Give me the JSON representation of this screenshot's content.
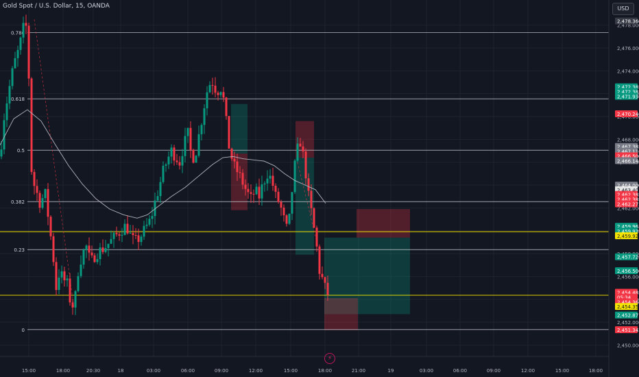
{
  "header": {
    "title": "Gold Spot / U.S. Dollar, 15, OANDA",
    "currency_button": "USD",
    "logo_icon": "bolt-icon"
  },
  "colors": {
    "background": "#131722",
    "bull": "#089981",
    "bear": "#f23645",
    "grid": "#1f232e",
    "fib_line": "#d1d4dc",
    "yellow": "#f5e400",
    "ma": "#b2b5be"
  },
  "chart_data": {
    "type": "candlestick",
    "symbol": "XAUUSD",
    "timeframe": "15",
    "ylim": [
      2449.0,
      2479.2
    ],
    "y_ticks": [
      "2,450.000",
      "2,452.000",
      "2,454.000",
      "2,456.000",
      "2,458.000",
      "2,460.000",
      "2,462.000",
      "2,464.000",
      "2,466.000",
      "2,468.000",
      "2,470.000",
      "2,472.000",
      "2,474.000",
      "2,476.000",
      "2,478.000"
    ],
    "x_ticks": [
      "15:00",
      "18:00",
      "20:30",
      "18",
      "03:00",
      "06:00",
      "09:00",
      "12:00",
      "15:00",
      "18:00",
      "21:00",
      "19",
      "03:00",
      "06:00",
      "09:00",
      "12:00",
      "15:00",
      "18:00"
    ],
    "fib_levels": [
      {
        "label": "0.786",
        "price": 2477.35
      },
      {
        "label": "0.618",
        "price": 2471.55
      },
      {
        "label": "0.5",
        "price": 2467.05
      },
      {
        "label": "0.382",
        "price": 2462.55
      },
      {
        "label": "0.23",
        "price": 2458.35
      },
      {
        "label": "0",
        "price": 2451.35
      }
    ],
    "horizontal_lines": [
      2459.92,
      2454.36
    ],
    "price_labels": [
      {
        "text": "2,478.360",
        "price": 2478.36,
        "color": "#363a45"
      },
      {
        "text": "2,472.385",
        "price": 2472.6,
        "color": "#089981"
      },
      {
        "text": "2,472.385",
        "price": 2472.19,
        "color": "#089981"
      },
      {
        "text": "2,471.930",
        "price": 2471.77,
        "color": "#089981"
      },
      {
        "text": "2,470.240",
        "price": 2470.24,
        "color": "#f23645"
      },
      {
        "text": "2,467.385",
        "price": 2467.38,
        "color": "#787b86"
      },
      {
        "text": "2,467.110",
        "price": 2466.97,
        "color": "#787b86"
      },
      {
        "text": "2,466.500",
        "price": 2466.56,
        "color": "#f23645"
      },
      {
        "text": "2,466.140",
        "price": 2466.14,
        "color": "#787b86"
      },
      {
        "text": "2,464.000",
        "price": 2464.0,
        "color": "#787b86"
      },
      {
        "text": "2,463.408",
        "price": 2463.59,
        "color": "#e6e6e6"
      },
      {
        "text": "2,462.385",
        "price": 2463.18,
        "color": "#f23645"
      },
      {
        "text": "2,462.385",
        "price": 2462.77,
        "color": "#f23645"
      },
      {
        "text": "2,462.273",
        "price": 2462.36,
        "color": "#f23645"
      },
      {
        "text": "2,459.962",
        "price": 2460.39,
        "color": "#089981"
      },
      {
        "text": "2,459.923",
        "price": 2459.98,
        "color": "#089981"
      },
      {
        "text": "2,459.921",
        "price": 2459.57,
        "color": "#f5e400"
      },
      {
        "text": "2,457.720",
        "price": 2457.72,
        "color": "#089981"
      },
      {
        "text": "2,456.500",
        "price": 2456.5,
        "color": "#089981"
      },
      {
        "text": "2,454.485",
        "price": 2454.62,
        "color": "#f23645"
      },
      {
        "text": "05:34",
        "price": 2454.2,
        "color": "#f23645"
      },
      {
        "text": "2,454.360",
        "price": 2453.78,
        "color": "#f23645"
      },
      {
        "text": "2,454.358",
        "price": 2453.37,
        "color": "#f5e400"
      },
      {
        "text": "2,452.871",
        "price": 2452.62,
        "color": "#089981"
      },
      {
        "text": "2,451.343",
        "price": 2451.34,
        "color": "#f23645"
      }
    ],
    "position_boxes": [
      {
        "kind": "profit",
        "x0": 337,
        "x1": 361,
        "y_top": 2471.1,
        "y_bottom": 2466.76
      },
      {
        "kind": "loss",
        "x0": 337,
        "x1": 361,
        "y_top": 2466.76,
        "y_bottom": 2461.8
      },
      {
        "kind": "loss",
        "x0": 431,
        "x1": 458,
        "y_top": 2469.6,
        "y_bottom": 2466.4
      },
      {
        "kind": "profit",
        "x0": 431,
        "x1": 458,
        "y_top": 2466.4,
        "y_bottom": 2457.9
      },
      {
        "kind": "profit",
        "x0": 473,
        "x1": 598,
        "y_top": 2459.4,
        "y_bottom": 2452.7
      },
      {
        "kind": "loss",
        "x0": 520,
        "x1": 598,
        "y_top": 2461.9,
        "y_bottom": 2459.4
      },
      {
        "kind": "loss",
        "x0": 473,
        "x1": 522,
        "y_top": 2454.1,
        "y_bottom": 2451.3
      }
    ],
    "price_path": [
      [
        0,
        2466.5
      ],
      [
        6,
        2470.0
      ],
      [
        12,
        2472.0
      ],
      [
        20,
        2474.5
      ],
      [
        28,
        2476.0
      ],
      [
        36,
        2478.3
      ],
      [
        41,
        2477.2
      ],
      [
        44,
        2466.0
      ],
      [
        50,
        2464.0
      ],
      [
        58,
        2462.5
      ],
      [
        66,
        2463.2
      ],
      [
        72,
        2460.5
      ],
      [
        78,
        2457.5
      ],
      [
        82,
        2455.0
      ],
      [
        88,
        2456.8
      ],
      [
        92,
        2455.3
      ],
      [
        96,
        2456.0
      ],
      [
        102,
        2454.0
      ],
      [
        108,
        2453.2
      ],
      [
        114,
        2456.5
      ],
      [
        120,
        2458.0
      ],
      [
        126,
        2458.6
      ],
      [
        132,
        2457.2
      ],
      [
        138,
        2457.8
      ],
      [
        144,
        2458.2
      ],
      [
        152,
        2458.5
      ],
      [
        160,
        2459.0
      ],
      [
        168,
        2459.5
      ],
      [
        176,
        2460.0
      ],
      [
        184,
        2460.5
      ],
      [
        190,
        2459.6
      ],
      [
        196,
        2459.0
      ],
      [
        204,
        2459.4
      ],
      [
        212,
        2460.2
      ],
      [
        220,
        2461.0
      ],
      [
        226,
        2462.5
      ],
      [
        232,
        2463.8
      ],
      [
        238,
        2465.2
      ],
      [
        244,
        2466.2
      ],
      [
        250,
        2467.0
      ],
      [
        256,
        2466.5
      ],
      [
        262,
        2466.0
      ],
      [
        268,
        2467.5
      ],
      [
        274,
        2468.5
      ],
      [
        280,
        2466.2
      ],
      [
        286,
        2467.0
      ],
      [
        292,
        2469.0
      ],
      [
        298,
        2471.0
      ],
      [
        304,
        2472.8
      ],
      [
        310,
        2473.0
      ],
      [
        316,
        2472.2
      ],
      [
        322,
        2472.5
      ],
      [
        328,
        2471.0
      ],
      [
        332,
        2468.0
      ],
      [
        336,
        2466.8
      ],
      [
        342,
        2465.6
      ],
      [
        348,
        2465.0
      ],
      [
        354,
        2464.2
      ],
      [
        360,
        2463.4
      ],
      [
        366,
        2462.8
      ],
      [
        372,
        2463.5
      ],
      [
        378,
        2463.0
      ],
      [
        384,
        2464.2
      ],
      [
        390,
        2465.0
      ],
      [
        396,
        2464.5
      ],
      [
        402,
        2463.0
      ],
      [
        408,
        2462.4
      ],
      [
        414,
        2461.0
      ],
      [
        420,
        2459.8
      ],
      [
        426,
        2463.5
      ],
      [
        432,
        2466.8
      ],
      [
        438,
        2467.8
      ],
      [
        444,
        2466.0
      ],
      [
        450,
        2463.0
      ],
      [
        456,
        2461.0
      ],
      [
        462,
        2458.5
      ],
      [
        466,
        2456.5
      ],
      [
        470,
        2455.8
      ],
      [
        474,
        2455.0
      ],
      [
        478,
        2454.5
      ]
    ],
    "moving_average": [
      [
        0,
        2467.5
      ],
      [
        20,
        2469.8
      ],
      [
        40,
        2470.6
      ],
      [
        60,
        2469.6
      ],
      [
        80,
        2467.6
      ],
      [
        100,
        2465.7
      ],
      [
        120,
        2464.1
      ],
      [
        140,
        2462.8
      ],
      [
        160,
        2461.9
      ],
      [
        180,
        2461.4
      ],
      [
        200,
        2461.1
      ],
      [
        215,
        2461.4
      ],
      [
        230,
        2462.1
      ],
      [
        250,
        2463.0
      ],
      [
        270,
        2463.8
      ],
      [
        290,
        2464.8
      ],
      [
        310,
        2465.8
      ],
      [
        325,
        2466.4
      ],
      [
        340,
        2466.5
      ],
      [
        355,
        2466.3
      ],
      [
        370,
        2466.2
      ],
      [
        385,
        2466.1
      ],
      [
        400,
        2465.7
      ],
      [
        415,
        2465.0
      ],
      [
        430,
        2464.4
      ],
      [
        445,
        2464.0
      ],
      [
        460,
        2463.6
      ],
      [
        475,
        2462.4
      ]
    ],
    "dashed_lines": [
      [
        [
          50,
          2478.5
        ],
        [
          108,
          2453.2
        ]
      ],
      [
        [
          434,
          2466.0
        ],
        [
          462,
          2459.0
        ]
      ]
    ]
  }
}
